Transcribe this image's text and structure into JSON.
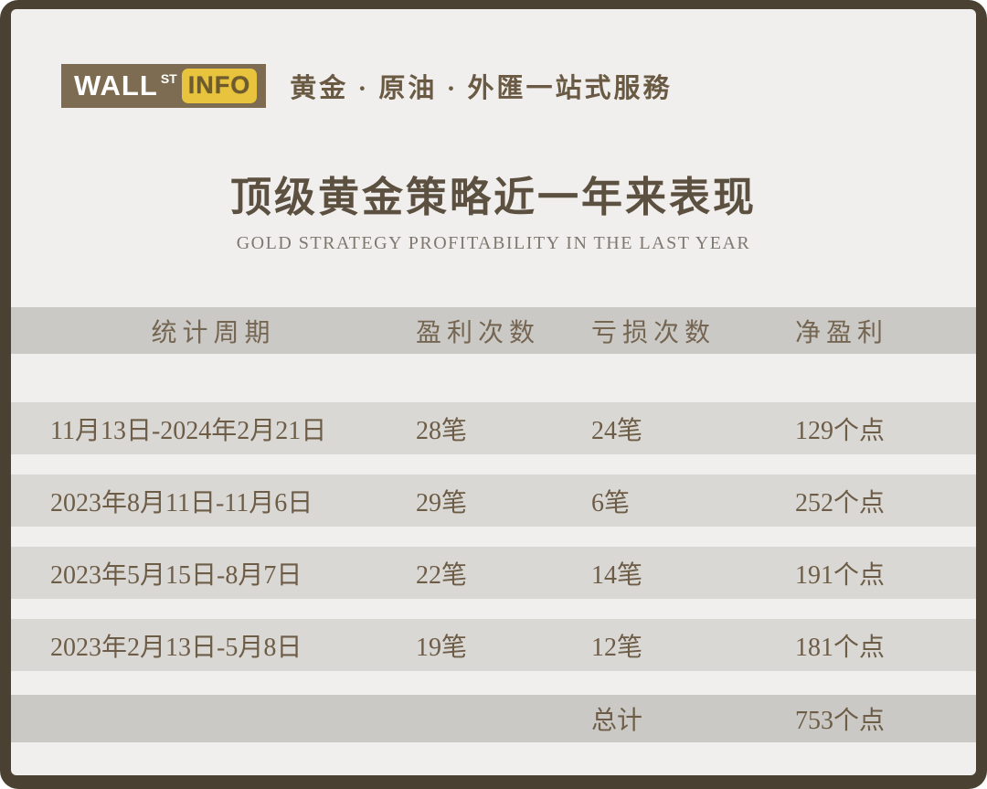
{
  "brand": {
    "logo": {
      "wall": "WALL",
      "st": "ST",
      "info": "INFO"
    },
    "tagline": "黄金 · 原油 · 外匯一站式服務"
  },
  "header": {
    "title": "顶级黄金策略近一年来表现",
    "subtitle": "GOLD STRATEGY PROFITABILITY IN THE LAST YEAR"
  },
  "table": {
    "columns": [
      "统计周期",
      "盈利次数",
      "亏损次数",
      "净盈利"
    ],
    "rows": [
      {
        "period": "11月13日-2024年2月21日",
        "wins": "28笔",
        "losses": "24笔",
        "net": "129个点"
      },
      {
        "period": "2023年8月11日-11月6日",
        "wins": "29笔",
        "losses": "6笔",
        "net": "252个点"
      },
      {
        "period": "2023年5月15日-8月7日",
        "wins": "22笔",
        "losses": "14笔",
        "net": "191个点"
      },
      {
        "period": "2023年2月13日-5月8日",
        "wins": "19笔",
        "losses": "12笔",
        "net": "181个点"
      }
    ],
    "total": {
      "label": "总计",
      "value": "753个点"
    }
  },
  "colors": {
    "frame": "#4a4132",
    "card_background": "#f0efed",
    "header_band": "#cbc9c6",
    "row_band": "#dad8d5",
    "text_brown": "#6d5d47",
    "title_brown": "#5c5040",
    "logo_box": "#7d6c51",
    "logo_yellow": "#e8c43e"
  }
}
